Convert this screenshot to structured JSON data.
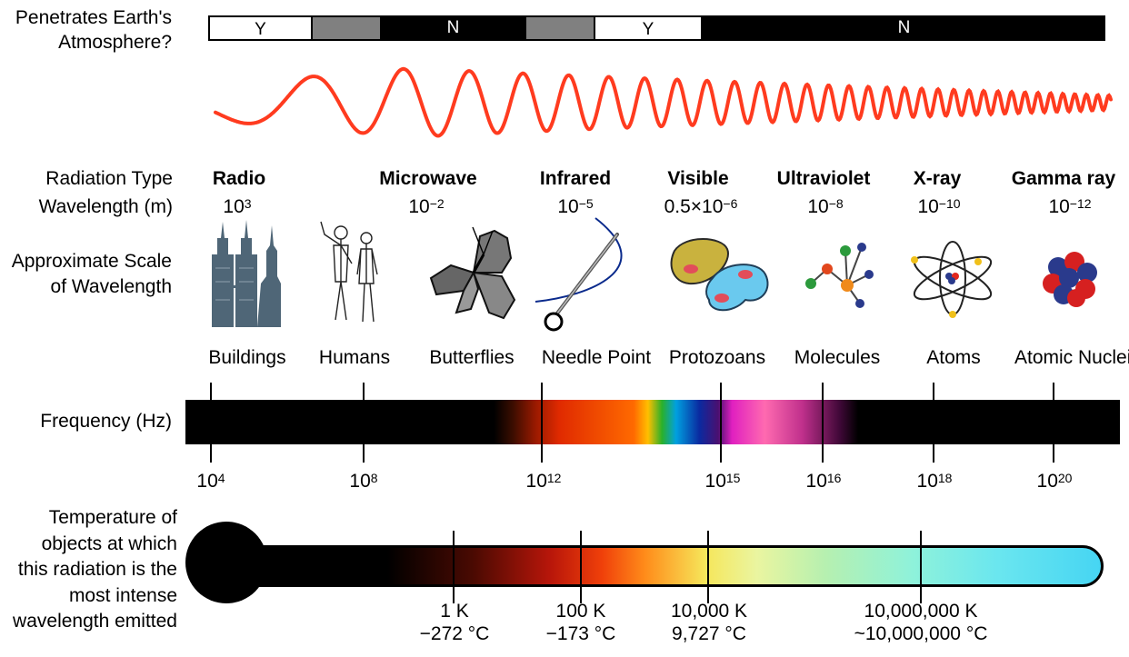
{
  "atmosphere": {
    "question_line1": "Penetrates Earth's",
    "question_line2": "Atmosphere?",
    "segments": [
      {
        "label": "Y",
        "state": "yes"
      },
      {
        "label": "",
        "state": "partial"
      },
      {
        "label": "N",
        "state": "no"
      },
      {
        "label": "",
        "state": "partial"
      },
      {
        "label": "Y",
        "state": "yes"
      },
      {
        "label": "N",
        "state": "no"
      }
    ]
  },
  "row_labels": {
    "radiation_type": "Radiation Type",
    "wavelength": "Wavelength (m)",
    "scale_line1": "Approximate Scale",
    "scale_line2": "of Wavelength",
    "frequency": "Frequency (Hz)",
    "temp_line1": "Temperature of",
    "temp_line2": "objects at which",
    "temp_line3": "this radiation is the",
    "temp_line4": "most intense",
    "temp_line5": "wavelength emitted"
  },
  "radiation": [
    {
      "type": "Radiation",
      "name": "Radio",
      "wl_base": "10",
      "wl_exp": "3"
    },
    {
      "type": "Radiation",
      "name": "Microwave",
      "wl_base": "10",
      "wl_exp": "−2"
    },
    {
      "type": "Radiation",
      "name": "Infrared",
      "wl_base": "10",
      "wl_exp": "−5"
    },
    {
      "type": "Radiation",
      "name": "Visible",
      "wl_base": "0.5×10",
      "wl_exp": "−6"
    },
    {
      "type": "Radiation",
      "name": "Ultraviolet",
      "wl_base": "10",
      "wl_exp": "−8"
    },
    {
      "type": "Radiation",
      "name": "X-ray",
      "wl_base": "10",
      "wl_exp": "−10"
    },
    {
      "type": "Radiation",
      "name": "Gamma ray",
      "wl_base": "10",
      "wl_exp": "−12"
    }
  ],
  "scale_objects": [
    "Buildings",
    "Humans",
    "Butterflies",
    "Needle Point",
    "Protozoans",
    "Molecules",
    "Atoms",
    "Atomic Nuclei"
  ],
  "frequency_ticks": [
    {
      "base": "10",
      "exp": "4"
    },
    {
      "base": "10",
      "exp": "8"
    },
    {
      "base": "10",
      "exp": "12"
    },
    {
      "base": "10",
      "exp": "15"
    },
    {
      "base": "10",
      "exp": "16"
    },
    {
      "base": "10",
      "exp": "18"
    },
    {
      "base": "10",
      "exp": "20"
    }
  ],
  "temperature_ticks": [
    {
      "kelvin": "1 K",
      "celsius": "−272 °C"
    },
    {
      "kelvin": "100 K",
      "celsius": "−173 °C"
    },
    {
      "kelvin": "10,000 K",
      "celsius": "9,727 °C"
    },
    {
      "kelvin": "10,000,000 K",
      "celsius": "~10,000,000 °C"
    }
  ],
  "colors": {
    "wave": "#ff3b1f",
    "building": "#4f6677",
    "thermo_end": "#46d5f3"
  }
}
